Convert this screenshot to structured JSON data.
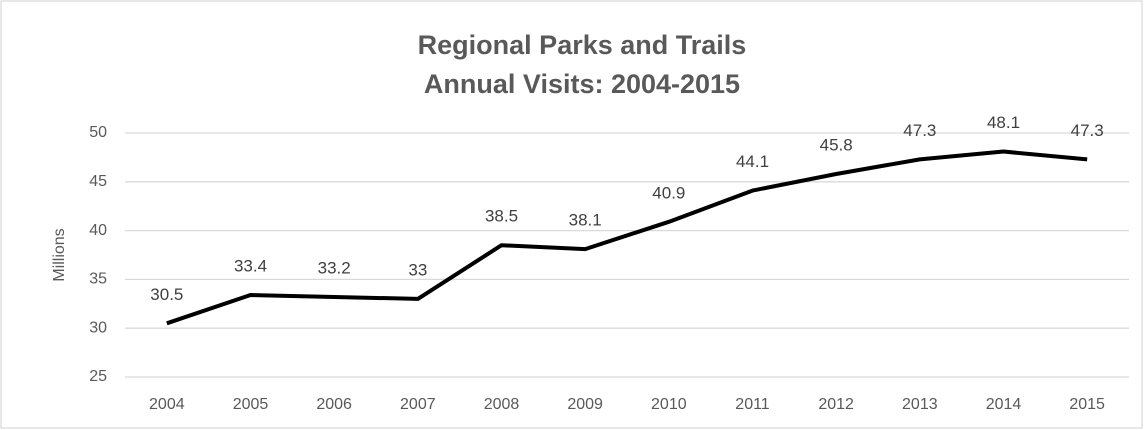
{
  "chart_data": {
    "type": "line",
    "title": [
      "Regional Parks and Trails",
      "Annual Visits: 2004-2015"
    ],
    "y_label": "Millions",
    "categories": [
      "2004",
      "2005",
      "2006",
      "2007",
      "2008",
      "2009",
      "2010",
      "2011",
      "2012",
      "2013",
      "2014",
      "2015"
    ],
    "values": [
      30.5,
      33.4,
      33.2,
      33,
      38.5,
      38.1,
      40.9,
      44.1,
      45.8,
      47.3,
      48.1,
      47.3
    ],
    "color": "#000000",
    "ylim": [
      25,
      50
    ],
    "yticks": [
      25,
      30,
      35,
      40,
      45,
      50
    ],
    "grid": true
  }
}
